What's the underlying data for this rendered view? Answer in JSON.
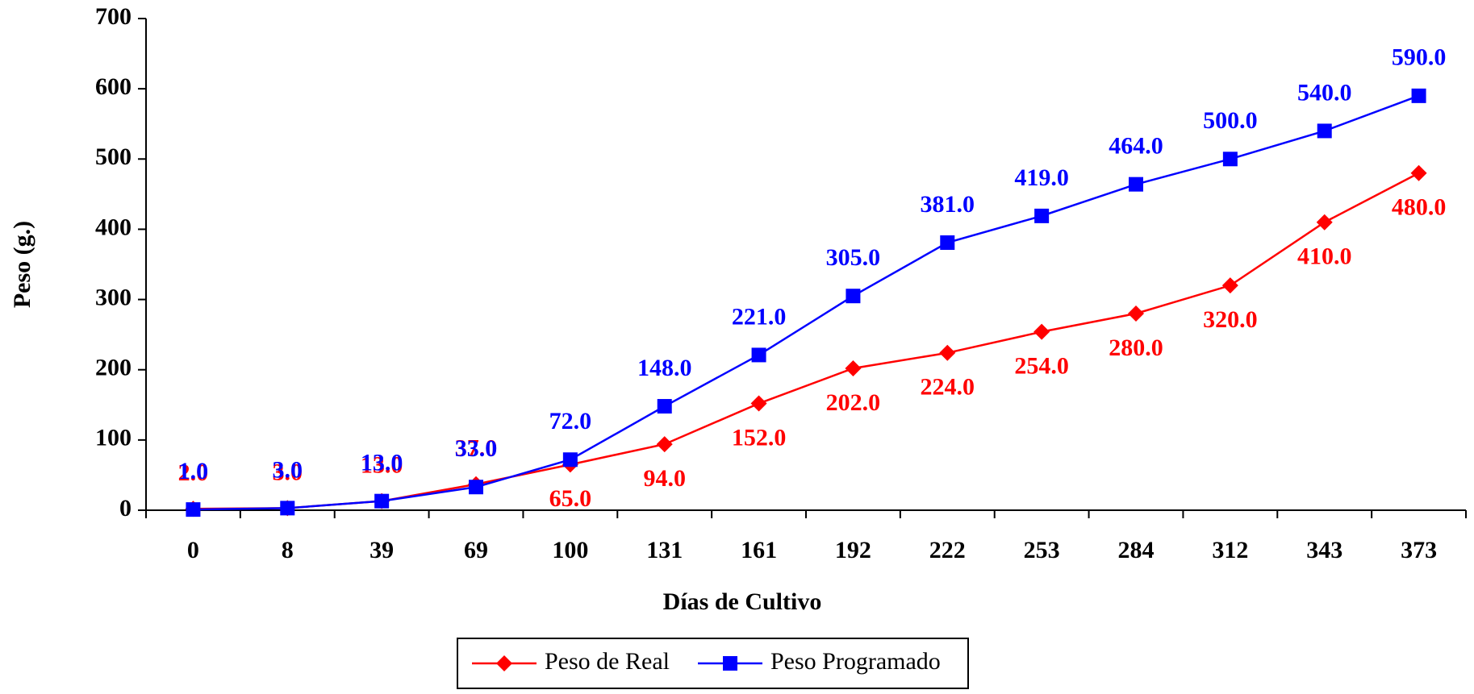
{
  "chart_data": {
    "type": "line",
    "x_label": "Días de Cultivo",
    "y_label": "Peso (g.)",
    "categories": [
      "0",
      "8",
      "39",
      "69",
      "100",
      "131",
      "161",
      "192",
      "222",
      "253",
      "284",
      "312",
      "343",
      "373"
    ],
    "series": [
      {
        "name": "Peso de Real",
        "color": "#ff0000",
        "marker": "diamond",
        "values": [
          2,
          3,
          13,
          37,
          65,
          94,
          152,
          202,
          224,
          254,
          280,
          320,
          410,
          480
        ],
        "value_labels": [
          "2.0",
          "3.0",
          "13.0",
          "37.0",
          "65.0",
          "94.0",
          "152.0",
          "202.0",
          "224.0",
          "254.0",
          "280.0",
          "320.0",
          "410.0",
          "480.0"
        ]
      },
      {
        "name": "Peso Programado",
        "color": "#0000ff",
        "marker": "square",
        "values": [
          1,
          3,
          13,
          33,
          72,
          148,
          221,
          305,
          381,
          419,
          464,
          500,
          540,
          590
        ],
        "value_labels": [
          "1.0",
          "3.0",
          "13.0",
          "33.0",
          "72.0",
          "148.0",
          "221.0",
          "305.0",
          "381.0",
          "419.0",
          "464.0",
          "500.0",
          "540.0",
          "590.0"
        ]
      }
    ],
    "ylim": [
      0,
      700
    ],
    "yticks": [
      0,
      100,
      200,
      300,
      400,
      500,
      600,
      700
    ],
    "legend": "bottom"
  }
}
